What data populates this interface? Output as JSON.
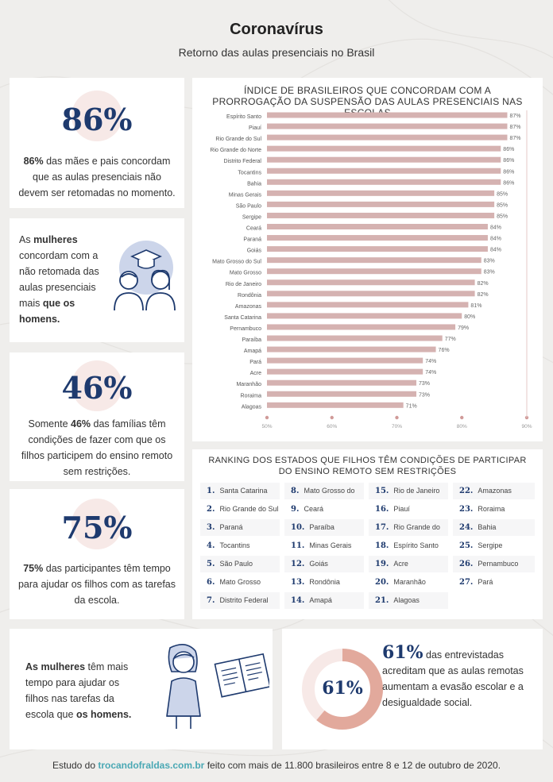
{
  "header": {
    "title": "Coronavírus",
    "subtitle": "Retorno das aulas presenciais no Brasil"
  },
  "stat1": {
    "big": "86%",
    "lead": "86%",
    "text": " das mães e pais concordam que as aulas presenciais não devem ser retomadas no momento."
  },
  "stat2": {
    "t1": "As ",
    "b1": "mulheres",
    "t2": " concordam com a não retomada das aulas presenciais mais ",
    "b2": "que os homens."
  },
  "stat3": {
    "big": "46%",
    "t1": "Somente ",
    "b1": "46%",
    "t2": " das famílias têm condições de fazer com que os filhos participem do ensino remoto sem restrições."
  },
  "stat4": {
    "big": "75%",
    "b1": "75%",
    "t1": " das participantes têm tempo para ajudar os filhos com as tarefas da escola."
  },
  "stat5": {
    "b1": "As mulheres",
    "t1": " têm mais tempo para ajudar os filhos nas tarefas da escola que ",
    "b2": "os homens."
  },
  "stat6": {
    "donut": "61%",
    "big": "61%",
    "text": " das entrevistadas acreditam que as aulas remotas aumentam a evasão escolar e a desigualdade social."
  },
  "ranking": {
    "title": "RANKING DOS ESTADOS QUE FILHOS TÊM CONDIÇÕES DE PARTICIPAR DO ENSINO REMOTO SEM RESTRIÇÕES",
    "items": [
      {
        "n": "1.",
        "name": "Santa Catarina"
      },
      {
        "n": "2.",
        "name": "Rio Grande do Sul"
      },
      {
        "n": "3.",
        "name": "Paraná"
      },
      {
        "n": "4.",
        "name": "Tocantins"
      },
      {
        "n": "5.",
        "name": "São Paulo"
      },
      {
        "n": "6.",
        "name": "Mato Grosso"
      },
      {
        "n": "7.",
        "name": "Distrito Federal"
      },
      {
        "n": "8.",
        "name": "Mato Grosso do Sul"
      },
      {
        "n": "9.",
        "name": "Ceará"
      },
      {
        "n": "10.",
        "name": "Paraíba"
      },
      {
        "n": "11.",
        "name": "Minas Gerais"
      },
      {
        "n": "12.",
        "name": "Goiás"
      },
      {
        "n": "13.",
        "name": "Rondônia"
      },
      {
        "n": "14.",
        "name": "Amapá"
      },
      {
        "n": "15.",
        "name": "Rio de Janeiro"
      },
      {
        "n": "16.",
        "name": "Piauí"
      },
      {
        "n": "17.",
        "name": "Rio Grande do Norte"
      },
      {
        "n": "18.",
        "name": "Espírito Santo"
      },
      {
        "n": "19.",
        "name": "Acre"
      },
      {
        "n": "20.",
        "name": "Maranhão"
      },
      {
        "n": "21.",
        "name": "Alagoas"
      },
      {
        "n": "22.",
        "name": "Amazonas"
      },
      {
        "n": "23.",
        "name": "Roraima"
      },
      {
        "n": "24.",
        "name": "Bahia"
      },
      {
        "n": "25.",
        "name": "Sergipe"
      },
      {
        "n": "26.",
        "name": "Pernambuco"
      },
      {
        "n": "27.",
        "name": "Pará"
      }
    ]
  },
  "footer": {
    "t1": "Estudo do ",
    "link": "trocandofraldas.com.br",
    "t2": " feito com mais de 11.800 brasileiros entre 8 e 12 de outubro de 2020."
  },
  "colors": {
    "navy": "#1e3a6e",
    "bar": "#d5b2b1",
    "pink_bg": "#f7e9e7",
    "donut": "#e2a99c",
    "teal_link": "#4aa8b4"
  },
  "chart_data": {
    "type": "bar",
    "orientation": "horizontal",
    "title": "ÍNDICE DE BRASILEIROS QUE CONCORDAM COM A PRORROGAÇÃO DA SUSPENSÃO DAS AULAS PRESENCIAIS NAS ESCOLAS",
    "categories": [
      "Espírito Santo",
      "Piauí",
      "Rio Grande do Sul",
      "Rio Grande do Norte",
      "Distrito Federal",
      "Tocantins",
      "Bahia",
      "Minas Gerais",
      "São Paulo",
      "Sergipe",
      "Ceará",
      "Paraná",
      "Goiás",
      "Mato Grosso do Sul",
      "Mato Grosso",
      "Rio de Janeiro",
      "Rondônia",
      "Amazonas",
      "Santa Catarina",
      "Pernambuco",
      "Paraíba",
      "Amapá",
      "Pará",
      "Acre",
      "Maranhão",
      "Roraima",
      "Alagoas"
    ],
    "values": [
      87,
      87,
      87,
      86,
      86,
      86,
      86,
      85,
      85,
      85,
      84,
      84,
      84,
      83,
      83,
      82,
      82,
      81,
      80,
      79,
      77,
      76,
      74,
      74,
      73,
      73,
      71
    ],
    "labels": [
      "87%",
      "87%",
      "87%",
      "86%",
      "86%",
      "86%",
      "86%",
      "85%",
      "85%",
      "85%",
      "84%",
      "84%",
      "84%",
      "83%",
      "83%",
      "82%",
      "82%",
      "81%",
      "80%",
      "79%",
      "77%",
      "76%",
      "74%",
      "74%",
      "73%",
      "73%",
      "71%"
    ],
    "xlim": [
      50,
      90
    ],
    "xticks": [
      50,
      60,
      70,
      80,
      90
    ],
    "xtick_labels": [
      "50%",
      "60%",
      "70%",
      "80%",
      "90%"
    ]
  }
}
